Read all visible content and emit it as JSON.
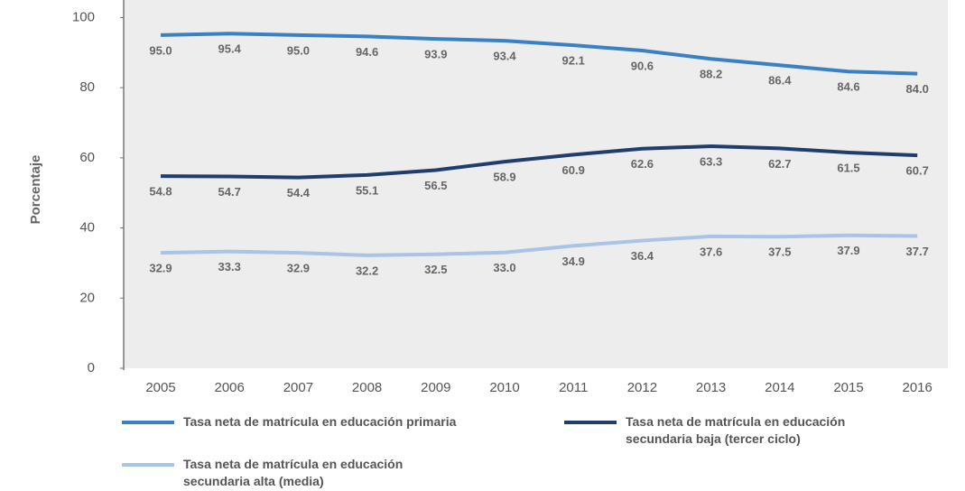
{
  "chart_data": {
    "type": "line",
    "y_label": "Porcentaje",
    "categories": [
      "2005",
      "2006",
      "2007",
      "2008",
      "2009",
      "2010",
      "2011",
      "2012",
      "2013",
      "2014",
      "2015",
      "2016"
    ],
    "ylim": [
      0,
      105
    ],
    "yticks": [
      0,
      20,
      40,
      60,
      80,
      100
    ],
    "series": [
      {
        "name": "Tasa neta de matrícula en educación primaria",
        "color": "#3a80c5",
        "values": [
          95.0,
          95.4,
          95.0,
          94.6,
          93.9,
          93.4,
          92.1,
          90.6,
          88.2,
          86.4,
          84.6,
          84.0
        ],
        "value_labels": [
          "95.0",
          "95.4",
          "95.0",
          "94.6",
          "93.9",
          "93.4",
          "92.1",
          "90.6",
          "88.2",
          "86.4",
          "84.6",
          "84.0"
        ]
      },
      {
        "name": "Tasa neta de matrícula en educación secundaria baja (tercer ciclo)",
        "color": "#1f3e6e",
        "values": [
          54.8,
          54.7,
          54.4,
          55.1,
          56.5,
          58.9,
          60.9,
          62.6,
          63.3,
          62.7,
          61.5,
          60.7
        ],
        "value_labels": [
          "54.8",
          "54.7",
          "54.4",
          "55.1",
          "56.5",
          "58.9",
          "60.9",
          "62.6",
          "63.3",
          "62.7",
          "61.5",
          "60.7"
        ]
      },
      {
        "name": "Tasa neta de matrícula en educación secundaria alta (media)",
        "color": "#a9c4e6",
        "values": [
          32.9,
          33.3,
          32.9,
          32.2,
          32.5,
          33.0,
          34.9,
          36.4,
          37.6,
          37.5,
          37.9,
          37.7
        ],
        "value_labels": [
          "32.9",
          "33.3",
          "32.9",
          "32.2",
          "32.5",
          "33.0",
          "34.9",
          "36.4",
          "37.6",
          "37.5",
          "37.9",
          "37.7"
        ]
      }
    ]
  }
}
